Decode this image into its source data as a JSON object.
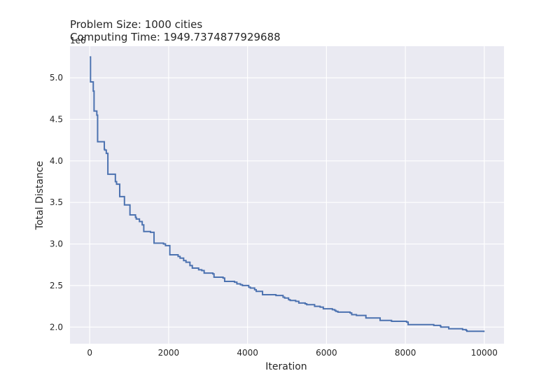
{
  "chart_data": {
    "type": "line",
    "title_lines": [
      "Problem Size: 1000 cities",
      "Computing Time: 1949.7374877929688"
    ],
    "xlabel": "Iteration",
    "ylabel": "Total Distance",
    "y_offset_text": "1e6",
    "xlim": [
      -500,
      10500
    ],
    "ylim": [
      1.8,
      5.38
    ],
    "xticks": [
      0,
      2000,
      4000,
      6000,
      8000,
      10000
    ],
    "xtick_labels": [
      "0",
      "2000",
      "4000",
      "6000",
      "8000",
      "10000"
    ],
    "yticks": [
      2.0,
      2.5,
      3.0,
      3.5,
      4.0,
      4.5,
      5.0
    ],
    "ytick_labels": [
      "2.0",
      "2.5",
      "3.0",
      "3.5",
      "4.0",
      "4.5",
      "5.0"
    ],
    "grid": true,
    "legend": "none",
    "colors": {
      "background": "#eaeaf2",
      "grid": "#ffffff",
      "line": "#4c72b0"
    },
    "series": [
      {
        "x": [
          0,
          20,
          40,
          90,
          110,
          130,
          180,
          200,
          220,
          370,
          380,
          420,
          460,
          500,
          650,
          680,
          700,
          760,
          870,
          880,
          1010,
          1020,
          1160,
          1180,
          1260,
          1330,
          1370,
          1540,
          1630,
          1870,
          1920,
          2030,
          2240,
          2290,
          2380,
          2440,
          2540,
          2600,
          2740,
          2760,
          2840,
          2900,
          3120,
          3150,
          3380,
          3420,
          3670,
          3730,
          3820,
          3870,
          4030,
          4070,
          4180,
          4220,
          4330,
          4380,
          4720,
          4790,
          4900,
          4940,
          5040,
          5080,
          5220,
          5300,
          5460,
          5500,
          5680,
          5700,
          5840,
          5920,
          6150,
          6210,
          6240,
          6290,
          6600,
          6640,
          6710,
          6760,
          6960,
          7000,
          7340,
          7360,
          7650,
          7680,
          8030,
          8070,
          8720,
          8730,
          8890,
          8900,
          9070,
          9100,
          9420,
          9450,
          9540,
          9560,
          9920,
          9990
        ],
        "y": [
          5.25,
          4.95,
          4.95,
          4.84,
          4.6,
          4.6,
          4.55,
          4.23,
          4.23,
          4.14,
          4.13,
          4.09,
          3.84,
          3.84,
          3.75,
          3.72,
          3.72,
          3.57,
          3.57,
          3.47,
          3.47,
          3.35,
          3.32,
          3.3,
          3.27,
          3.23,
          3.15,
          3.14,
          3.01,
          3.0,
          2.98,
          2.87,
          2.85,
          2.83,
          2.8,
          2.78,
          2.74,
          2.71,
          2.71,
          2.69,
          2.68,
          2.65,
          2.64,
          2.6,
          2.59,
          2.55,
          2.54,
          2.52,
          2.51,
          2.5,
          2.48,
          2.47,
          2.45,
          2.43,
          2.43,
          2.39,
          2.38,
          2.38,
          2.36,
          2.35,
          2.33,
          2.32,
          2.31,
          2.29,
          2.28,
          2.27,
          2.27,
          2.25,
          2.24,
          2.22,
          2.21,
          2.2,
          2.19,
          2.18,
          2.17,
          2.15,
          2.15,
          2.14,
          2.14,
          2.11,
          2.11,
          2.08,
          2.07,
          2.07,
          2.06,
          2.03,
          2.02,
          2.02,
          2.01,
          2.0,
          2.0,
          1.98,
          1.98,
          1.97,
          1.96,
          1.95,
          1.95,
          1.94
        ]
      }
    ]
  }
}
